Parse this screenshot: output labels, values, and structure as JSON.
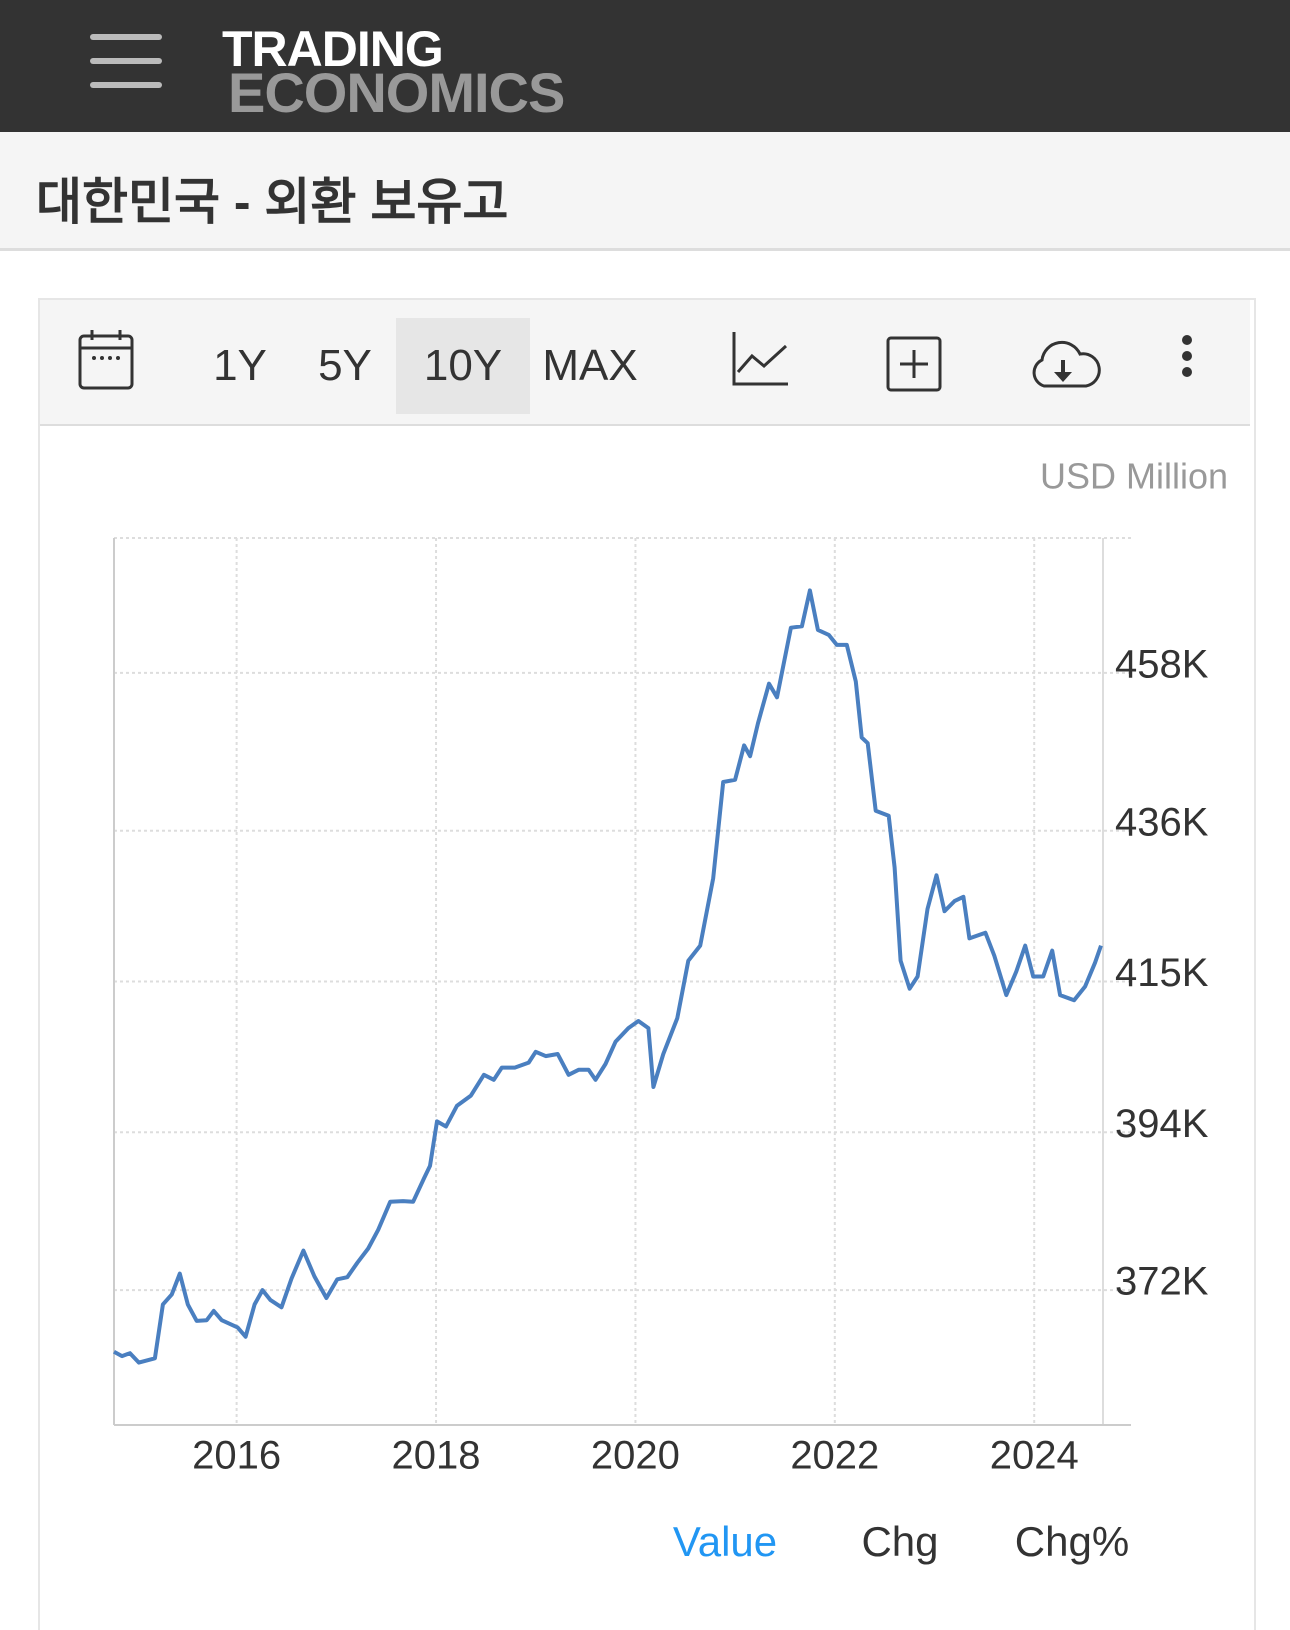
{
  "header": {
    "logo_top": "TRADING",
    "logo_bottom": "ECONOMICS"
  },
  "title": "대한민국 - 외환 보유고",
  "ranges": [
    "1Y",
    "5Y",
    "10Y",
    "MAX"
  ],
  "tabs": [
    "Value",
    "Chg",
    "Chg%"
  ],
  "chart_data": {
    "type": "line",
    "y_unit": "USD Million",
    "color": "#4a7fc0",
    "grid": true,
    "xlim": [
      2014.77,
      2024.69
    ],
    "xticks": [
      2016,
      2018,
      2020,
      2022,
      2024
    ],
    "ylim": [
      353200,
      476800
    ],
    "yticks": [
      {
        "value": 372000,
        "label": "372K"
      },
      {
        "value": 394000,
        "label": "394K"
      },
      {
        "value": 415000,
        "label": "415K"
      },
      {
        "value": 436000,
        "label": "436K"
      },
      {
        "value": 458000,
        "label": "458K"
      }
    ],
    "x": [
      2014.77,
      2014.85,
      2014.93,
      2015.02,
      2015.18,
      2015.26,
      2015.35,
      2015.43,
      2015.51,
      2015.6,
      2015.7,
      2015.77,
      2015.85,
      2016.01,
      2016.09,
      2016.18,
      2016.26,
      2016.34,
      2016.45,
      2016.55,
      2016.67,
      2016.78,
      2016.9,
      2017.01,
      2017.11,
      2017.21,
      2017.32,
      2017.42,
      2017.54,
      2017.67,
      2017.77,
      2017.88,
      2017.94,
      2018.01,
      2018.1,
      2018.21,
      2018.35,
      2018.48,
      2018.58,
      2018.66,
      2018.79,
      2018.93,
      2019.0,
      2019.1,
      2019.22,
      2019.33,
      2019.43,
      2019.53,
      2019.6,
      2019.7,
      2019.8,
      2019.93,
      2020.03,
      2020.13,
      2020.18,
      2020.28,
      2020.42,
      2020.53,
      2020.65,
      2020.78,
      2020.88,
      2021.0,
      2021.09,
      2021.15,
      2021.23,
      2021.34,
      2021.42,
      2021.56,
      2021.67,
      2021.75,
      2021.83,
      2021.94,
      2022.02,
      2022.12,
      2022.21,
      2022.27,
      2022.33,
      2022.41,
      2022.54,
      2022.6,
      2022.66,
      2022.75,
      2022.83,
      2022.93,
      2023.02,
      2023.1,
      2023.2,
      2023.29,
      2023.35,
      2023.51,
      2023.6,
      2023.72,
      2023.82,
      2023.91,
      2023.99,
      2024.09,
      2024.18,
      2024.26,
      2024.4,
      2024.51,
      2024.61,
      2024.67
    ],
    "values": [
      363400,
      362800,
      363200,
      361900,
      362500,
      370000,
      371400,
      374300,
      370000,
      367700,
      367800,
      369100,
      367800,
      366800,
      365500,
      370000,
      372000,
      370600,
      369600,
      373600,
      377500,
      373900,
      370900,
      373500,
      373800,
      375800,
      377800,
      380400,
      384300,
      384400,
      384300,
      387600,
      389300,
      395500,
      394800,
      397700,
      399100,
      402000,
      401300,
      403000,
      403000,
      403700,
      405200,
      404600,
      404900,
      402000,
      402700,
      402700,
      401300,
      403500,
      406600,
      408500,
      409500,
      408500,
      400300,
      404900,
      409900,
      417900,
      420000,
      429400,
      442800,
      443100,
      447900,
      446400,
      451000,
      456500,
      454600,
      464300,
      464500,
      469500,
      464000,
      463300,
      461900,
      461900,
      456800,
      449000,
      448200,
      438800,
      438100,
      430900,
      417900,
      414000,
      415700,
      425100,
      429800,
      424800,
      426200,
      426800,
      421000,
      421800,
      418600,
      413100,
      416400,
      420000,
      415700,
      415700,
      419300,
      413100,
      412400,
      414300,
      417600,
      420000
    ]
  }
}
